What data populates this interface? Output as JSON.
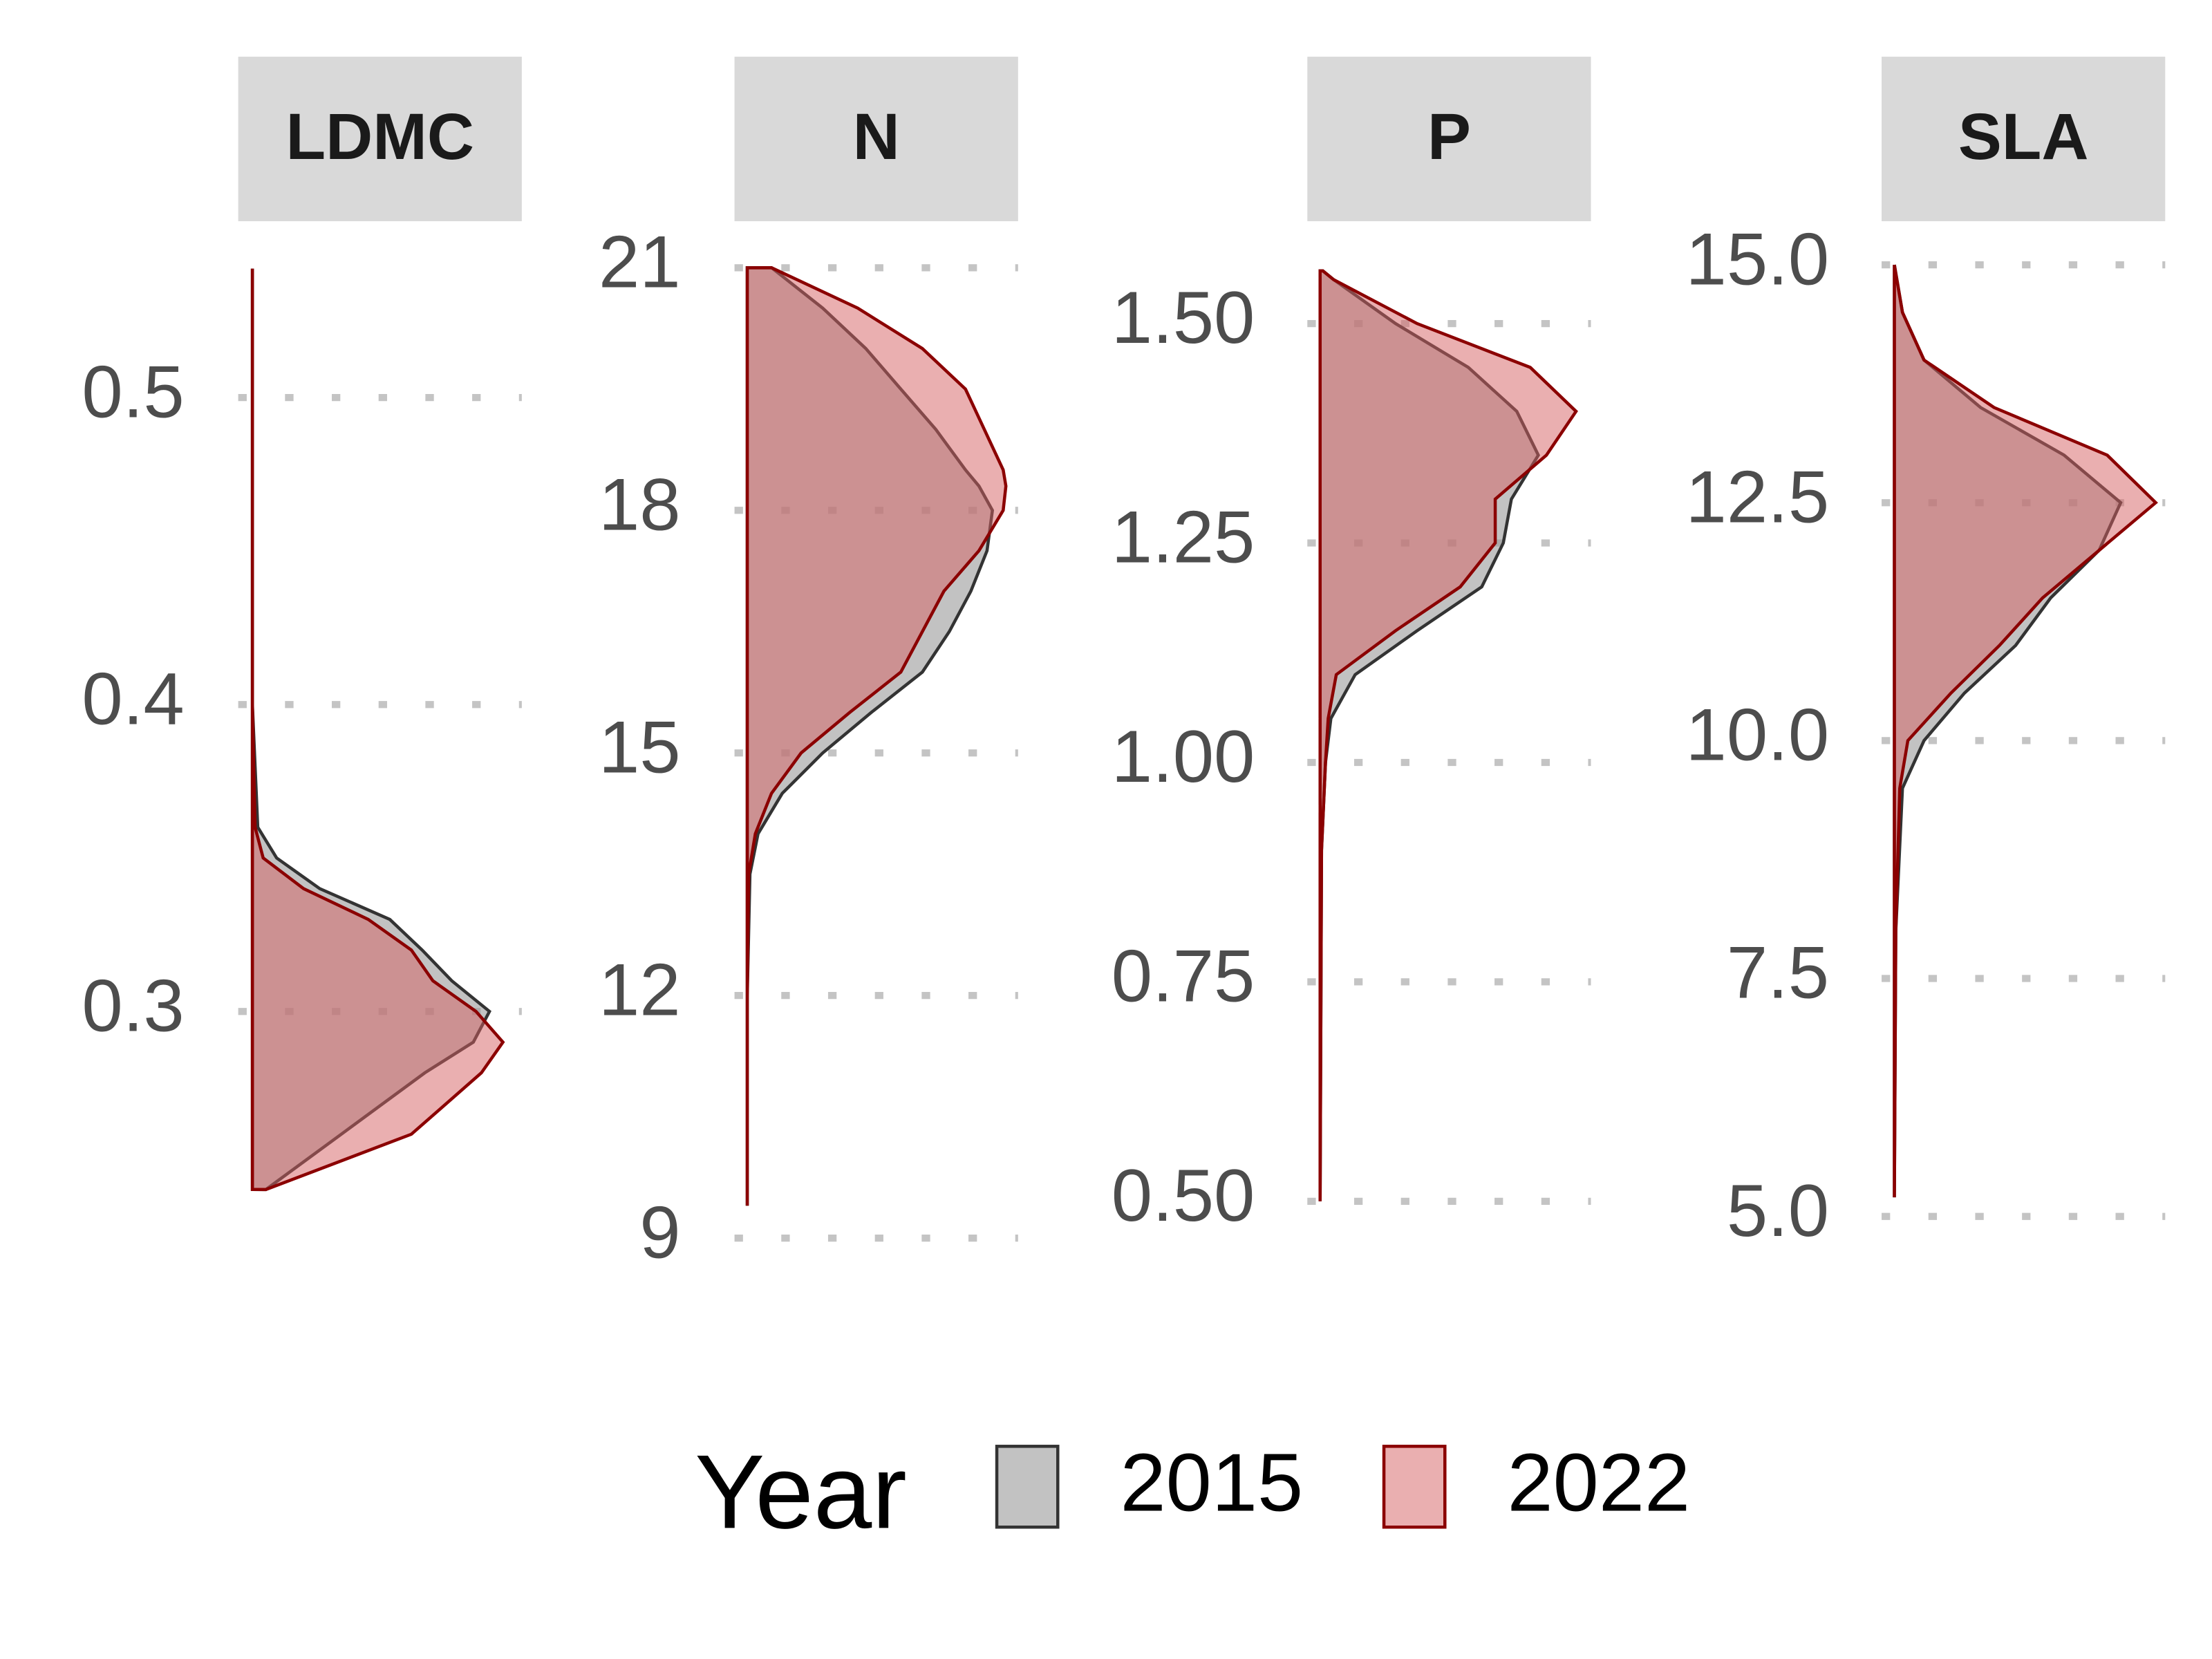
{
  "chart_data": [
    {
      "type": "density",
      "title": "LDMC",
      "legend_title": "Year",
      "y": [
        0.242,
        0.26,
        0.28,
        0.29,
        0.3,
        0.31,
        0.32,
        0.33,
        0.34,
        0.35,
        0.36,
        0.38,
        0.4,
        0.45,
        0.5,
        0.542
      ],
      "series": [
        {
          "name": "2015",
          "color": "#999999",
          "line_color": "#333333",
          "values": [
            0.05,
            0.33,
            0.64,
            0.82,
            0.88,
            0.74,
            0.63,
            0.51,
            0.25,
            0.09,
            0.02,
            0.01,
            0,
            0,
            0,
            0
          ]
        },
        {
          "name": "2022",
          "color": "#d65f62",
          "line_color": "#8b0000",
          "values": [
            0.05,
            0.59,
            0.85,
            0.93,
            0.83,
            0.67,
            0.59,
            0.43,
            0.19,
            0.04,
            0.01,
            0.005,
            0,
            0,
            0,
            0
          ]
        }
      ],
      "ylim": [
        0.223,
        0.551
      ],
      "yticks": [
        0.3,
        0.4,
        0.5
      ],
      "grid": true
    },
    {
      "type": "density",
      "title": "N",
      "y": [
        9.4,
        12,
        13.5,
        14,
        14.5,
        15,
        15.5,
        16,
        16.5,
        17,
        17.5,
        18,
        18.3,
        18.5,
        19,
        19.5,
        20,
        20.5,
        21
      ],
      "series": [
        {
          "name": "2015",
          "color": "#999999",
          "line_color": "#333333",
          "values": [
            0,
            0,
            0.01,
            0.04,
            0.13,
            0.28,
            0.46,
            0.65,
            0.75,
            0.83,
            0.89,
            0.91,
            0.86,
            0.81,
            0.7,
            0.57,
            0.44,
            0.28,
            0.09
          ]
        },
        {
          "name": "2022",
          "color": "#d65f62",
          "line_color": "#8b0000",
          "values": [
            0,
            0,
            0.005,
            0.03,
            0.09,
            0.2,
            0.38,
            0.57,
            0.65,
            0.73,
            0.86,
            0.95,
            0.96,
            0.95,
            0.88,
            0.81,
            0.65,
            0.41,
            0.09
          ]
        }
      ],
      "ylim": [
        8.88,
        21.33
      ],
      "yticks": [
        9,
        12,
        15,
        18,
        21
      ],
      "grid": true
    },
    {
      "type": "density",
      "title": "P",
      "y": [
        0.5,
        0.9,
        1.0,
        1.05,
        1.1,
        1.15,
        1.2,
        1.25,
        1.3,
        1.35,
        1.4,
        1.45,
        1.5,
        1.55,
        1.56
      ],
      "series": [
        {
          "name": "2015",
          "color": "#999999",
          "line_color": "#333333",
          "values": [
            0,
            0.005,
            0.02,
            0.04,
            0.13,
            0.36,
            0.6,
            0.68,
            0.71,
            0.81,
            0.73,
            0.55,
            0.28,
            0.05,
            0.01
          ]
        },
        {
          "name": "2022",
          "color": "#d65f62",
          "line_color": "#8b0000",
          "values": [
            0,
            0.005,
            0.02,
            0.03,
            0.06,
            0.28,
            0.52,
            0.65,
            0.65,
            0.84,
            0.95,
            0.78,
            0.36,
            0.05,
            0.01
          ]
        }
      ],
      "ylim": [
        0.447,
        1.594
      ],
      "yticks": [
        {
          "value": 0.5,
          "label": "0.50"
        },
        0.75,
        {
          "value": 1,
          "label": "1.00"
        },
        1.25,
        {
          "value": 1.5,
          "label": "1.50"
        }
      ],
      "grid": true
    },
    {
      "type": "density",
      "title": "SLA",
      "y": [
        5.2,
        8,
        9.5,
        10,
        10.5,
        11,
        11.5,
        12,
        12.5,
        13,
        13.5,
        14,
        14.5,
        15
      ],
      "series": [
        {
          "name": "2015",
          "color": "#999999",
          "line_color": "#333333",
          "values": [
            0,
            0.005,
            0.03,
            0.11,
            0.26,
            0.45,
            0.58,
            0.76,
            0.84,
            0.63,
            0.32,
            0.11,
            0.03,
            0
          ]
        },
        {
          "name": "2022",
          "color": "#d65f62",
          "line_color": "#8b0000",
          "values": [
            0,
            0.005,
            0.02,
            0.05,
            0.21,
            0.39,
            0.55,
            0.76,
            0.97,
            0.79,
            0.37,
            0.11,
            0.03,
            0
          ]
        }
      ],
      "ylim": [
        4.67,
        15.25
      ],
      "yticks": [
        {
          "value": 5,
          "label": "5.0"
        },
        7.5,
        {
          "value": 10,
          "label": "10.0"
        },
        12.5,
        {
          "value": 15,
          "label": "15.0"
        }
      ],
      "grid": true
    }
  ]
}
